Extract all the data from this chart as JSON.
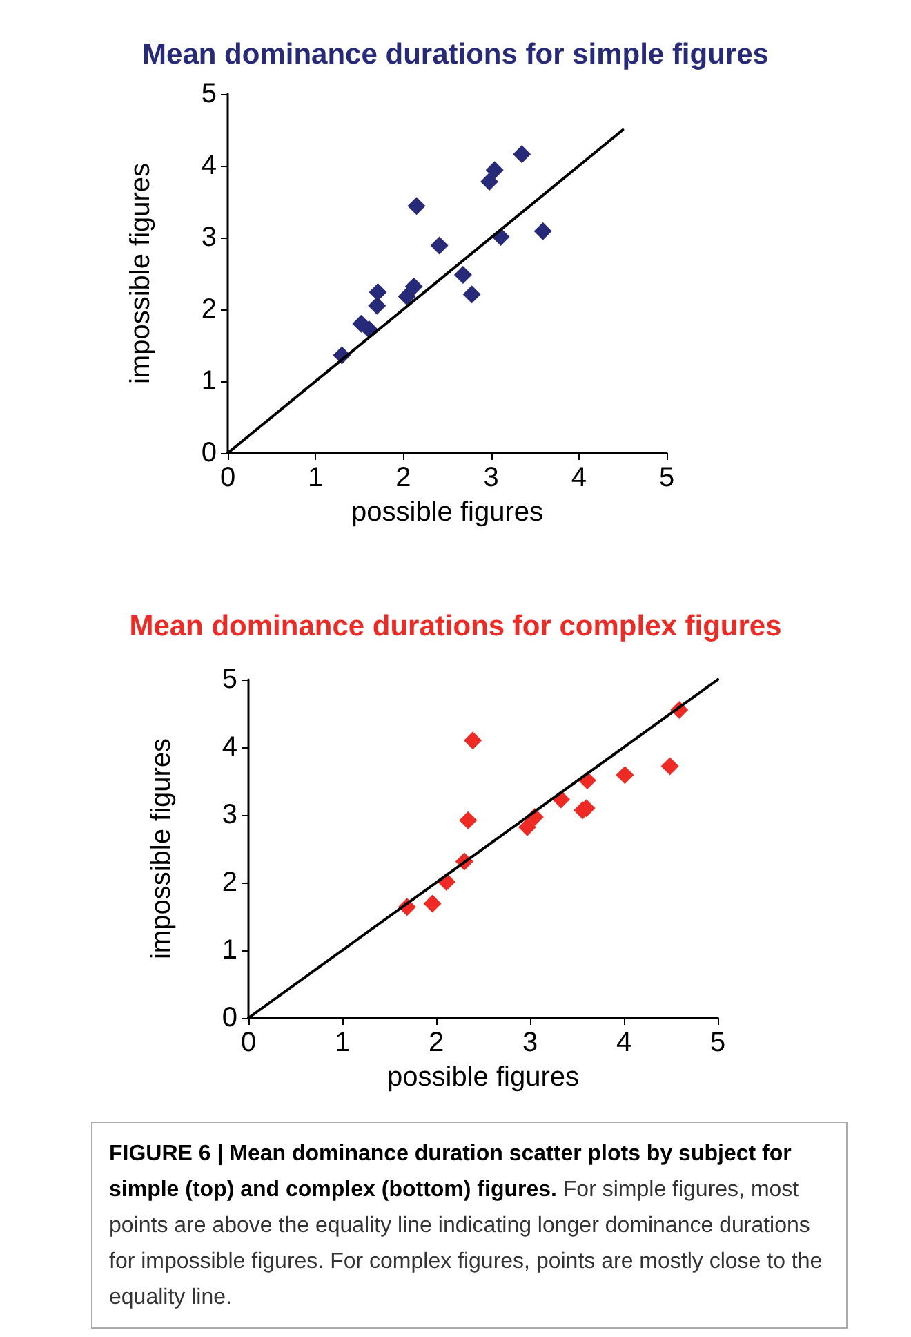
{
  "chart_data": [
    {
      "type": "scatter",
      "title": "Mean dominance durations for simple figures",
      "xlabel": "possible figures",
      "ylabel": "impossible figures",
      "xlim": [
        0,
        5
      ],
      "xticks": [
        0,
        1,
        2,
        3,
        4,
        5
      ],
      "ylim": [
        0,
        5
      ],
      "yticks": [
        0,
        1,
        2,
        3,
        4,
        5
      ],
      "grid": false,
      "marker": "diamond",
      "series": [
        {
          "type": "scatter",
          "color": "#262a78",
          "x": [
            1.3,
            1.52,
            1.61,
            1.71,
            1.7,
            2.04,
            2.12,
            2.15,
            2.41,
            2.68,
            2.78,
            2.98,
            3.04,
            3.11,
            3.35,
            3.59
          ],
          "values": [
            1.36,
            1.8,
            1.72,
            2.24,
            2.05,
            2.18,
            2.32,
            3.44,
            2.89,
            2.48,
            2.21,
            3.78,
            3.94,
            3.01,
            4.16,
            3.09
          ]
        },
        {
          "type": "line",
          "color": "#000000",
          "marker": "none",
          "x": [
            0,
            4.5
          ],
          "values": [
            0,
            4.5
          ]
        }
      ]
    },
    {
      "type": "scatter",
      "title": "Mean dominance durations for complex figures",
      "xlabel": "possible figures",
      "ylabel": "impossible figures",
      "xlim": [
        0,
        5
      ],
      "xticks": [
        0,
        1,
        2,
        3,
        4,
        5
      ],
      "ylim": [
        0,
        5
      ],
      "yticks": [
        0,
        1,
        2,
        3,
        4,
        5
      ],
      "grid": false,
      "marker": "diamond",
      "series": [
        {
          "type": "scatter",
          "color": "#ee2a24",
          "x": [
            1.69,
            1.96,
            2.11,
            2.3,
            2.34,
            2.39,
            2.97,
            3.05,
            3.33,
            3.56,
            3.6,
            3.61,
            4.01,
            4.49,
            4.59
          ],
          "values": [
            1.64,
            1.69,
            2.01,
            2.31,
            2.92,
            4.1,
            2.82,
            2.97,
            3.23,
            3.07,
            3.1,
            3.51,
            3.59,
            3.72,
            4.55
          ]
        },
        {
          "type": "line",
          "color": "#000000",
          "marker": "none",
          "x": [
            0,
            5
          ],
          "values": [
            0,
            5
          ]
        }
      ]
    },
    {
      "type": "other",
      "annotations": [
        "FIGURE 6 | Mean dominance duration scatter plots by subject for simple (top) and complex (bottom) figures.",
        "For simple figures, most points are above the equality line indicating longer dominance durations for impossible figures. For complex figures, points are mostly close to the equality line."
      ]
    }
  ]
}
